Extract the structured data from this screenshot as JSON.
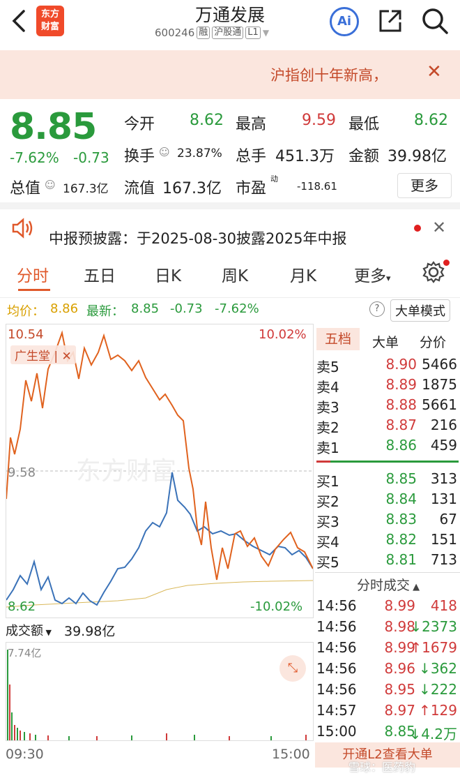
{
  "header": {
    "logo_text_1": "东方",
    "logo_text_2": "财富",
    "title": "万通发展",
    "code": "600246",
    "tags": [
      "融",
      "沪股通",
      "L1"
    ],
    "ai_label": "Ai"
  },
  "banner": {
    "text": "沪指创十年新高，"
  },
  "quote": {
    "price": "8.85",
    "change_pct": "-7.62%",
    "change": "-0.73",
    "open_label": "今开",
    "open": "8.62",
    "high_label": "最高",
    "high": "9.59",
    "low_label": "最低",
    "low": "8.62",
    "turnover_label": "换手",
    "turnover": "23.87%",
    "volume_label": "总手",
    "volume": "451.3万",
    "amount_label": "金额",
    "amount": "39.98亿",
    "mktcap_label": "总值",
    "mktcap": "167.3亿",
    "float_label": "流值",
    "float": "167.3亿",
    "pe_label": "市盈",
    "pe_sup": "动",
    "pe": "-118.61",
    "more_label": "更多"
  },
  "notice": {
    "text": "中报预披露：于2025-08-30披露2025年中报"
  },
  "tabs": [
    "分时",
    "五日",
    "日K",
    "周K",
    "月K",
    "更多"
  ],
  "info": {
    "avg_label": "均价：",
    "avg": "8.86",
    "last_label": "最新：",
    "last": "8.85",
    "chg": "-0.73",
    "chg_pct": "-7.62%",
    "mode_label": "大单模式"
  },
  "chart": {
    "y_top": "10.54",
    "y_mid": "9.58",
    "y_bot": "8.62",
    "pct_top": "10.02%",
    "pct_bot": "-10.02%",
    "overlay_label": "广生堂",
    "watermark": "东方财富"
  },
  "volume": {
    "label": "成交额",
    "value": "39.98亿",
    "max": "7.74亿",
    "t_start": "09:30",
    "t_end": "15:00"
  },
  "orderbook": {
    "tabs": [
      "五档",
      "大单",
      "分价"
    ],
    "asks": [
      {
        "label": "卖5",
        "price": "8.90",
        "vol": "5466"
      },
      {
        "label": "卖4",
        "price": "8.89",
        "vol": "1875"
      },
      {
        "label": "卖3",
        "price": "8.88",
        "vol": "5661"
      },
      {
        "label": "卖2",
        "price": "8.87",
        "vol": "216"
      },
      {
        "label": "卖1",
        "price": "8.86",
        "vol": "459"
      }
    ],
    "bids": [
      {
        "label": "买1",
        "price": "8.85",
        "vol": "313"
      },
      {
        "label": "买2",
        "price": "8.84",
        "vol": "131"
      },
      {
        "label": "买3",
        "price": "8.83",
        "vol": "67"
      },
      {
        "label": "买4",
        "price": "8.82",
        "vol": "151"
      },
      {
        "label": "买5",
        "price": "8.81",
        "vol": "713"
      }
    ],
    "ticks_title": "分时成交",
    "ticks": [
      {
        "time": "14:56",
        "price": "8.99",
        "vol": "418",
        "dir": ""
      },
      {
        "time": "14:56",
        "price": "8.98",
        "vol": "2373",
        "dir": "↓"
      },
      {
        "time": "14:56",
        "price": "8.99",
        "vol": "1679",
        "dir": "↑"
      },
      {
        "time": "14:56",
        "price": "8.96",
        "vol": "362",
        "dir": "↓"
      },
      {
        "time": "14:56",
        "price": "8.95",
        "vol": "222",
        "dir": "↓"
      },
      {
        "time": "14:57",
        "price": "8.97",
        "vol": "129",
        "dir": "↑"
      },
      {
        "time": "15:00",
        "price": "8.85",
        "vol": "4.2万",
        "dir": "↓"
      }
    ],
    "l2_label": "开通L2查看大单"
  },
  "watermark_corner": "雪球：医药豹"
}
